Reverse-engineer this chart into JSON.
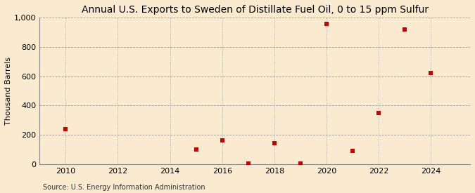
{
  "title": "Annual U.S. Exports to Sweden of Distillate Fuel Oil, 0 to 15 ppm Sulfur",
  "ylabel": "Thousand Barrels",
  "source": "Source: U.S. Energy Information Administration",
  "years": [
    2010,
    2015,
    2016,
    2017,
    2018,
    2019,
    2020,
    2021,
    2022,
    2023,
    2024
  ],
  "values": [
    240,
    100,
    160,
    5,
    145,
    5,
    955,
    90,
    350,
    920,
    620
  ],
  "marker_color": "#cc0000",
  "marker": "s",
  "marker_size": 4,
  "background_color": "#faebd0",
  "xlim": [
    2009.0,
    2025.5
  ],
  "ylim": [
    0,
    1000
  ],
  "xticks": [
    2010,
    2012,
    2014,
    2016,
    2018,
    2020,
    2022,
    2024
  ],
  "yticks": [
    0,
    200,
    400,
    600,
    800,
    1000
  ],
  "ytick_labels": [
    "0",
    "200",
    "400",
    "600",
    "800",
    "1,000"
  ],
  "grid_color": "#999999",
  "grid_linestyle": "--",
  "title_fontsize": 10,
  "label_fontsize": 8,
  "tick_fontsize": 8,
  "source_fontsize": 7
}
